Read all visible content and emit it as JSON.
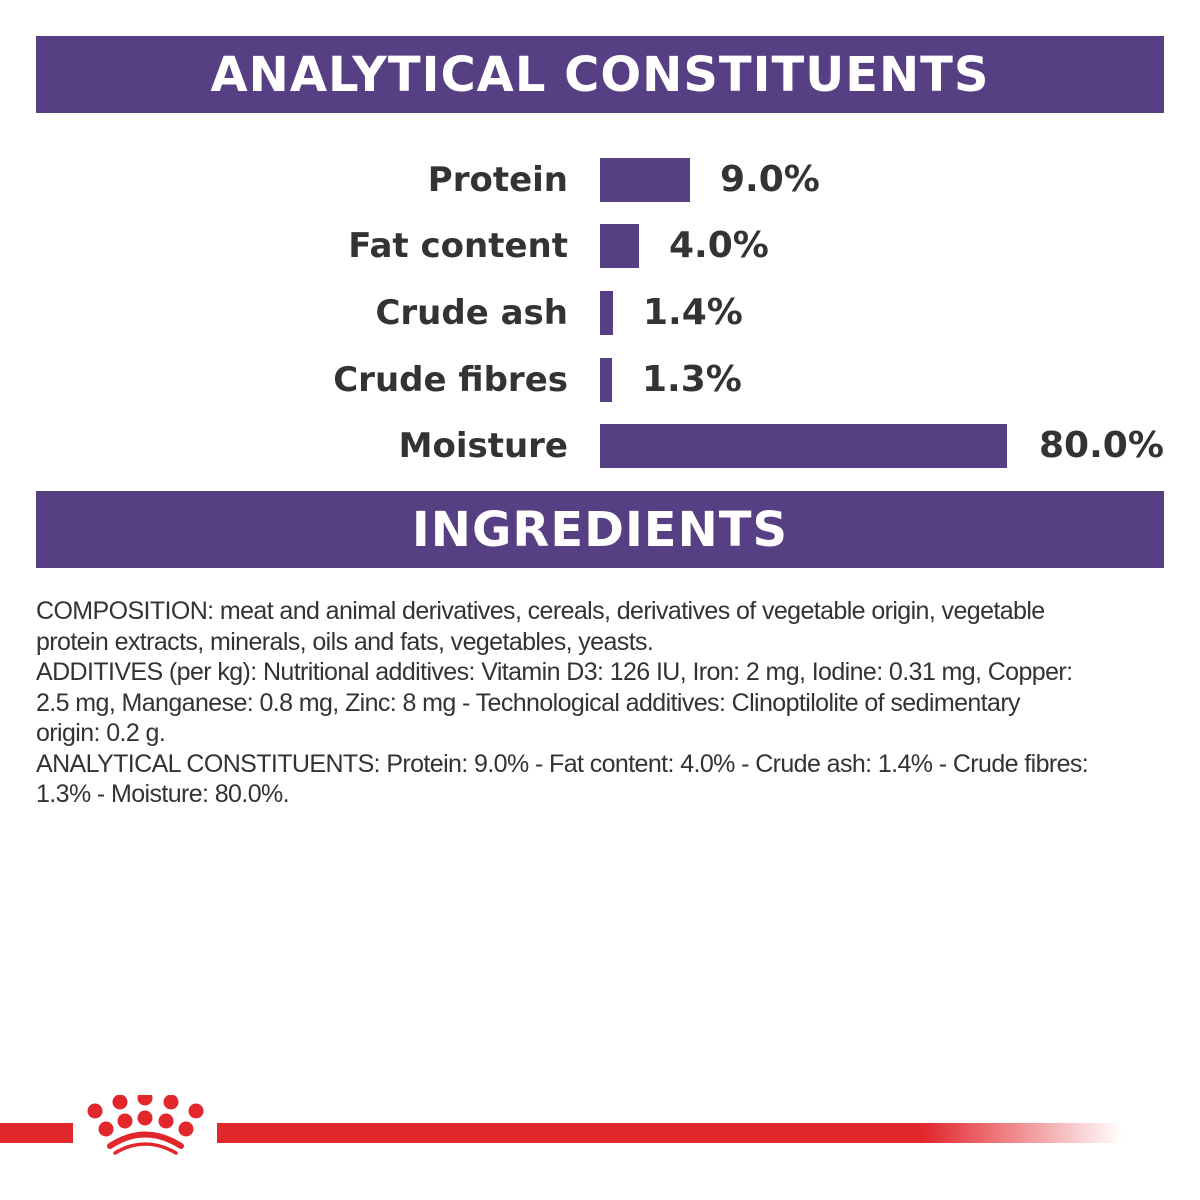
{
  "chart_data": {
    "type": "bar",
    "title": "ANALYTICAL CONSTITUENTS",
    "categories": [
      "Protein",
      "Fat content",
      "Crude ash",
      "Crude fibres",
      "Moisture"
    ],
    "values": [
      9.0,
      4.0,
      1.4,
      1.3,
      80.0
    ],
    "labels": [
      "9.0%",
      "4.0%",
      "1.4%",
      "1.3%",
      "80.0%"
    ],
    "orientation": "horizontal",
    "colors": {
      "bar": "#563f82"
    }
  },
  "ingredients": {
    "title": "INGREDIENTS",
    "lines": [
      "COMPOSITION: meat and animal derivatives, cereals, derivatives of vegetable origin, vegetable",
      "protein extracts, minerals, oils and fats, vegetables, yeasts.",
      "ADDITIVES (per kg): Nutritional additives: Vitamin D3: 126 IU, Iron: 2 mg, Iodine: 0.31 mg, Copper:",
      "2.5 mg, Manganese: 0.8 mg, Zinc: 8 mg - Technological additives: Clinoptilolite of sedimentary",
      "origin: 0.2 g.",
      "ANALYTICAL CONSTITUENTS: Protein: 9.0% - Fat content: 4.0% - Crude ash: 1.4% - Crude fibres:",
      "1.3% - Moisture: 80.0%."
    ]
  },
  "brand_color": "#e1262c"
}
